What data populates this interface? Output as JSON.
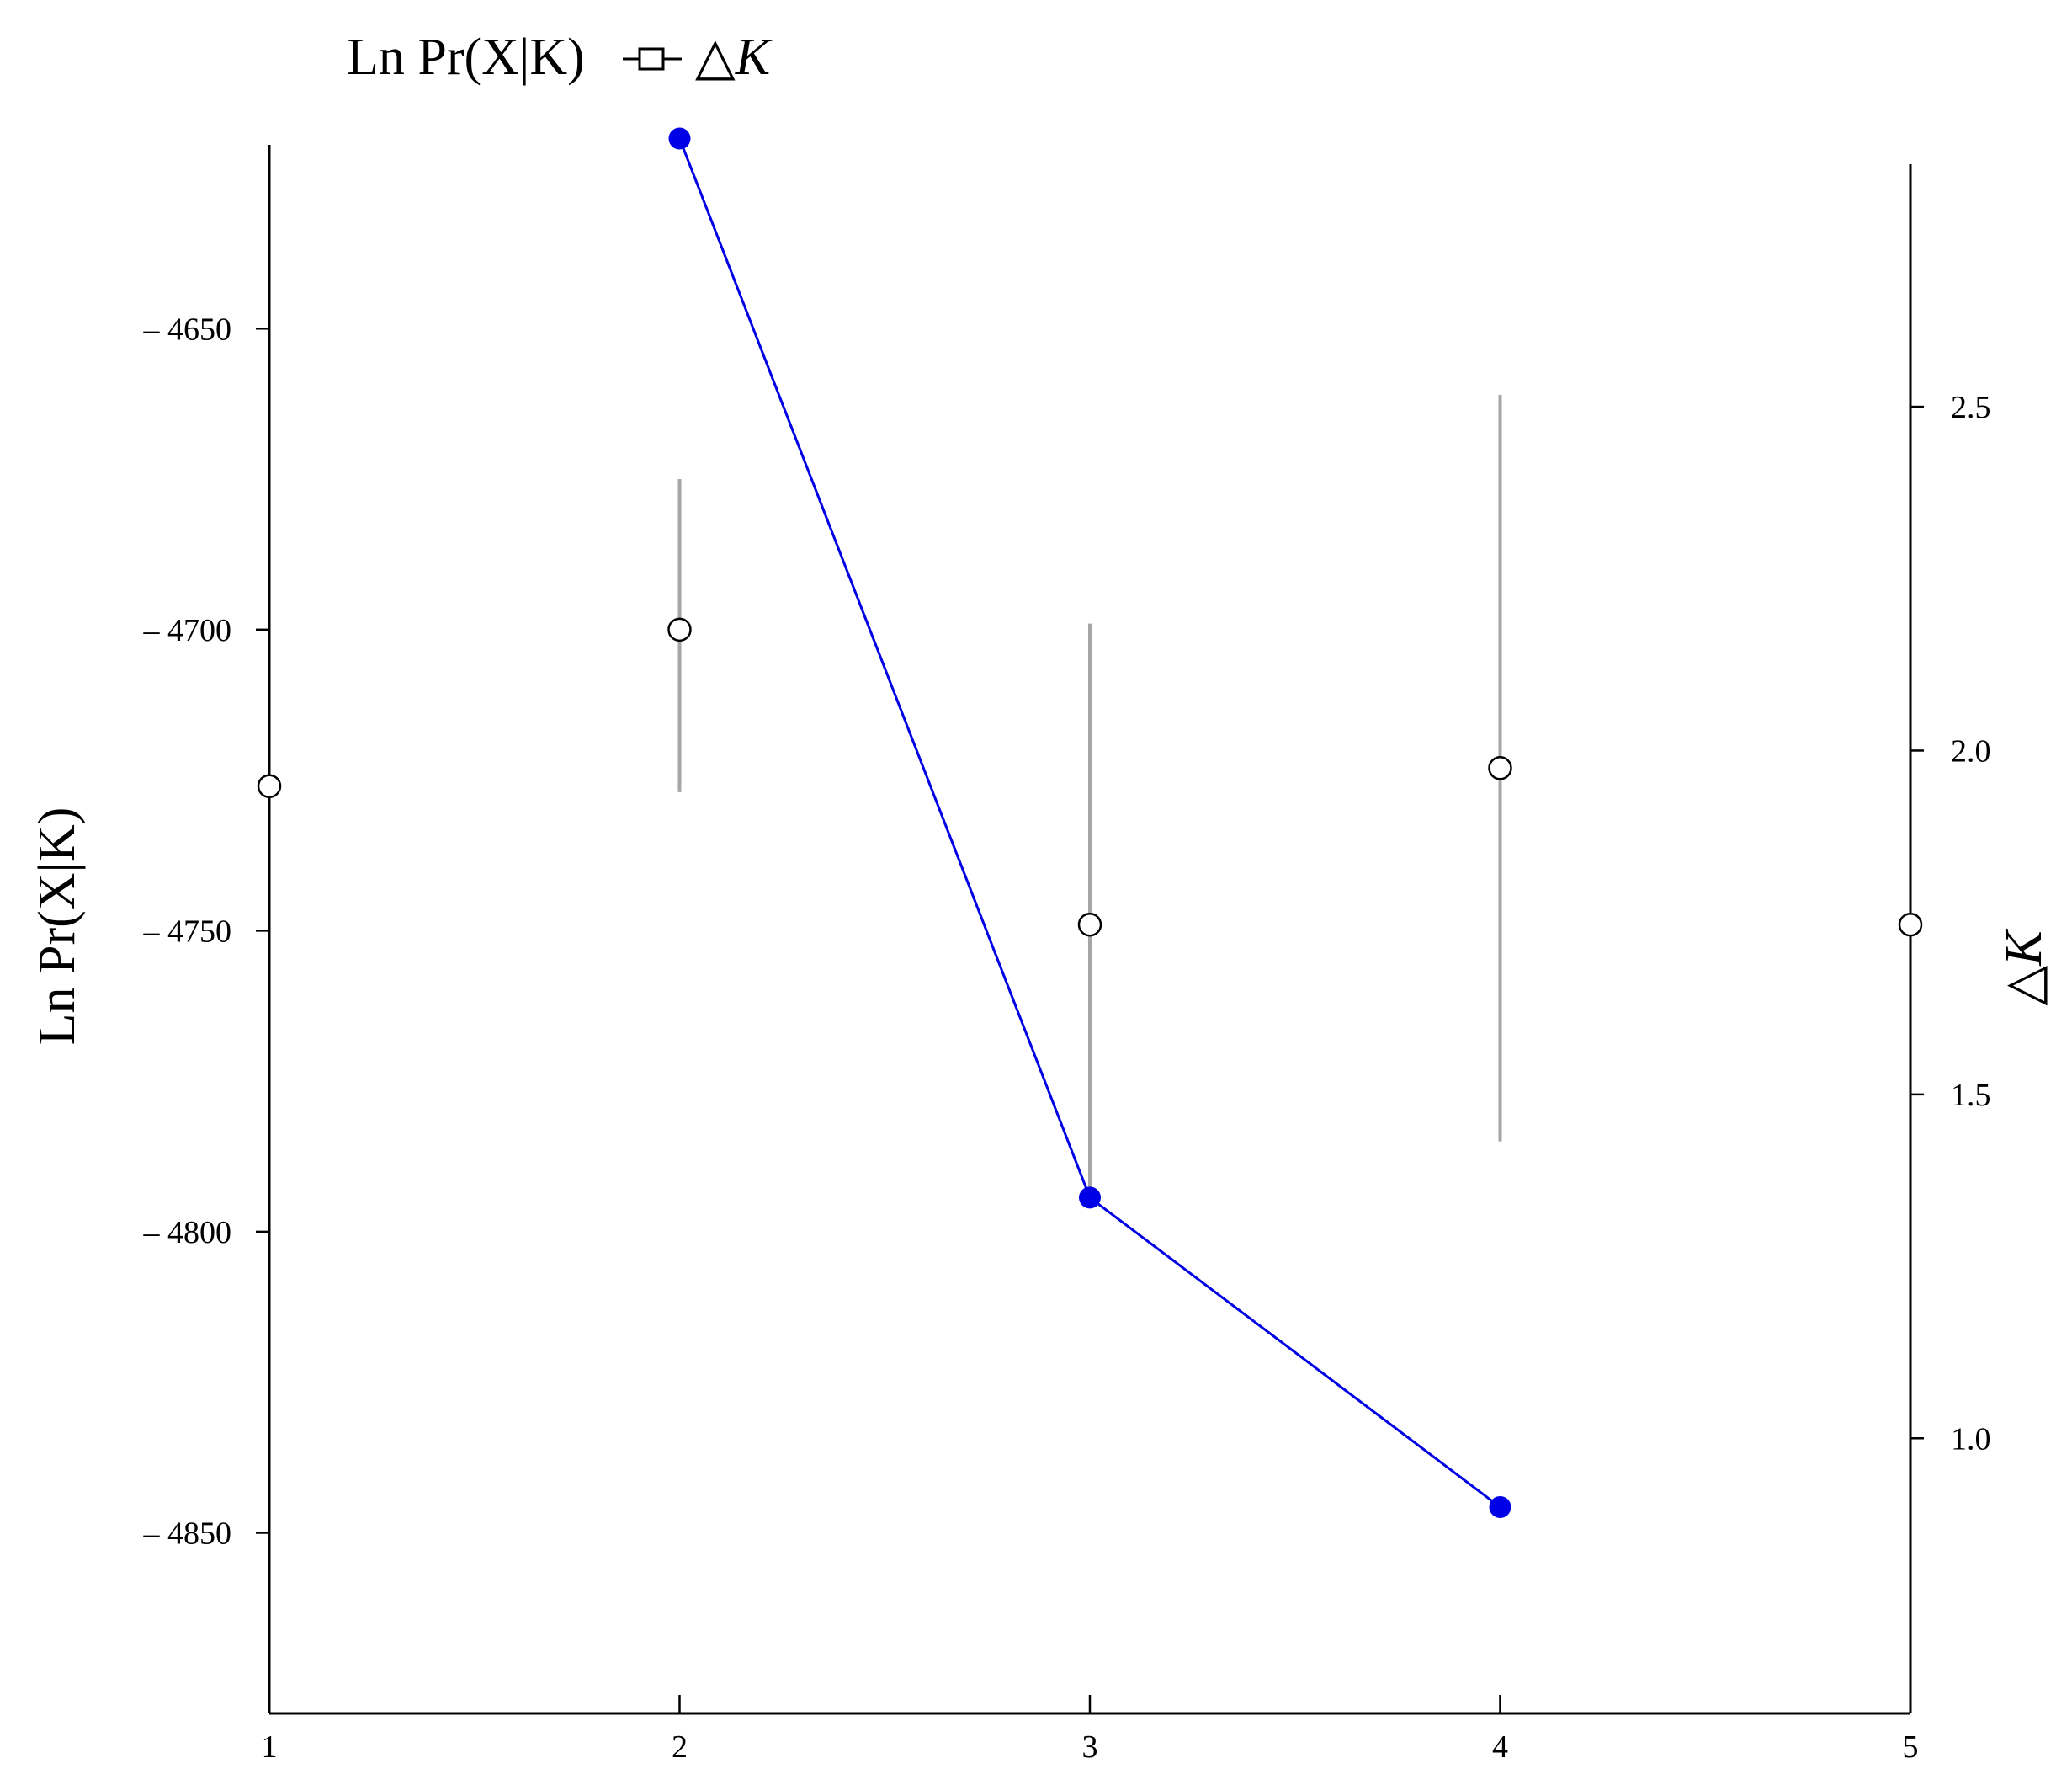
{
  "chart_data": {
    "type": "line",
    "title": "",
    "legend": {
      "placement": "top-left",
      "label_left": "Ln Pr(X|K)",
      "label_right_symbol": "△",
      "label_right_var": "K"
    },
    "x": {
      "label": "",
      "range": [
        1,
        5
      ],
      "ticks": [
        "1",
        "2",
        "3",
        "4",
        "5"
      ]
    },
    "y_left": {
      "label": "Ln Pr(X|K)",
      "range": [
        -4880,
        -4615
      ],
      "ticks": [
        {
          "value": -4650,
          "label": "– 4650"
        },
        {
          "value": -4700,
          "label": "– 4700"
        },
        {
          "value": -4750,
          "label": "– 4750"
        },
        {
          "value": -4800,
          "label": "– 4800"
        },
        {
          "value": -4850,
          "label": "– 4850"
        }
      ]
    },
    "y_right": {
      "label_symbol": "△",
      "label_var": "K",
      "range": [
        0.6,
        2.92
      ],
      "ticks": [
        {
          "value": 2.5,
          "label": "2.5"
        },
        {
          "value": 2.0,
          "label": "2.0"
        },
        {
          "value": 1.5,
          "label": "1.5"
        },
        {
          "value": 1.0,
          "label": "1.0"
        }
      ]
    },
    "grid": false,
    "series": [
      {
        "axis": "left",
        "marker": "open-circle",
        "color": "#000000",
        "errorbar_color": "#a6a6a6",
        "points": [
          {
            "x": 1,
            "y": -4726
          },
          {
            "x": 2,
            "y": -4700,
            "err_low": -4727,
            "err_high": -4675
          },
          {
            "x": 3,
            "y": -4749,
            "err_low": -4795,
            "err_high": -4699
          },
          {
            "x": 4,
            "y": -4723,
            "err_low": -4785,
            "err_high": -4661
          },
          {
            "x": 5,
            "y": -4749
          }
        ]
      },
      {
        "axis": "right",
        "marker": "filled-circle",
        "color": "#0000e6",
        "points": [
          {
            "x": 2,
            "y": 2.89
          },
          {
            "x": 3,
            "y": 1.35
          },
          {
            "x": 4,
            "y": 0.9
          }
        ]
      }
    ]
  }
}
